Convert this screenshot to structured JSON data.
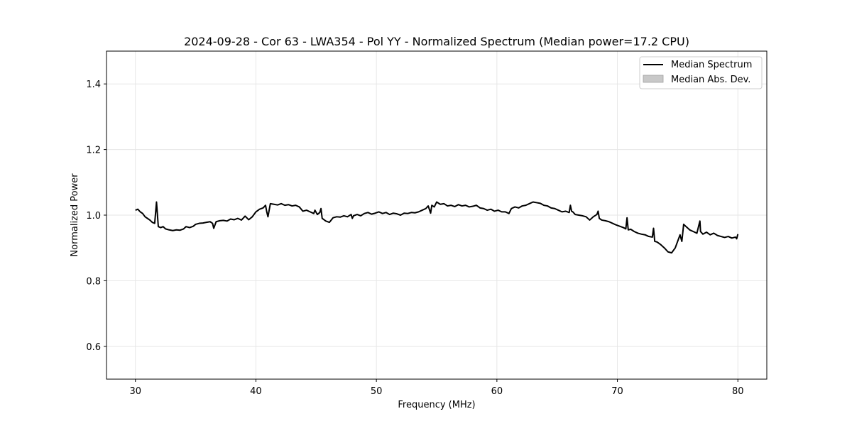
{
  "chart_data": {
    "type": "line",
    "title": "2024-09-28 - Cor 63 - LWA354 - Pol YY - Normalized Spectrum (Median power=17.2 CPU)",
    "xlabel": "Frequency (MHz)",
    "ylabel": "Normalized Power",
    "xlim": [
      27.6,
      82.4
    ],
    "ylim": [
      0.5,
      1.5
    ],
    "xticks": [
      30,
      40,
      50,
      60,
      70,
      80
    ],
    "yticks": [
      0.6,
      0.8,
      1.0,
      1.2,
      1.4
    ],
    "grid": true,
    "legend_position": "top-right",
    "legend": [
      {
        "label": "Median Spectrum",
        "kind": "line",
        "color": "#000000"
      },
      {
        "label": "Median Abs. Dev.",
        "kind": "patch",
        "color": "#c8c8c8"
      }
    ],
    "series": [
      {
        "name": "Median Spectrum",
        "color": "#000000",
        "x": [
          30.0,
          30.2,
          30.4,
          30.6,
          30.8,
          31.0,
          31.2,
          31.4,
          31.6,
          31.75,
          31.9,
          32.1,
          32.3,
          32.5,
          32.8,
          33.1,
          33.4,
          33.7,
          34.0,
          34.2,
          34.5,
          34.8,
          35.0,
          35.3,
          35.6,
          35.9,
          36.2,
          36.4,
          36.5,
          36.7,
          37.0,
          37.3,
          37.6,
          37.9,
          38.2,
          38.5,
          38.8,
          39.1,
          39.4,
          39.7,
          40.0,
          40.3,
          40.6,
          40.8,
          40.9,
          41.0,
          41.2,
          41.5,
          41.8,
          42.1,
          42.4,
          42.7,
          43.0,
          43.3,
          43.6,
          43.9,
          44.2,
          44.5,
          44.8,
          44.9,
          45.1,
          45.3,
          45.4,
          45.5,
          45.8,
          46.1,
          46.4,
          46.7,
          47.0,
          47.3,
          47.6,
          47.9,
          48.0,
          48.1,
          48.4,
          48.7,
          49.0,
          49.3,
          49.6,
          49.9,
          50.2,
          50.5,
          50.8,
          51.1,
          51.4,
          51.7,
          52.0,
          52.3,
          52.6,
          52.9,
          53.2,
          53.5,
          53.8,
          54.1,
          54.3,
          54.5,
          54.6,
          54.8,
          55.0,
          55.3,
          55.6,
          55.9,
          56.2,
          56.5,
          56.8,
          57.1,
          57.4,
          57.7,
          58.0,
          58.3,
          58.6,
          58.9,
          59.2,
          59.5,
          59.8,
          60.1,
          60.4,
          60.7,
          61.0,
          61.2,
          61.5,
          61.8,
          62.1,
          62.4,
          62.7,
          63.0,
          63.3,
          63.6,
          63.9,
          64.2,
          64.5,
          64.8,
          65.1,
          65.4,
          65.7,
          66.0,
          66.1,
          66.2,
          66.3,
          66.5,
          66.8,
          67.1,
          67.4,
          67.7,
          68.0,
          68.3,
          68.4,
          68.5,
          68.7,
          69.0,
          69.3,
          69.6,
          69.9,
          70.2,
          70.5,
          70.7,
          70.8,
          70.9,
          71.1,
          71.4,
          71.7,
          72.0,
          72.3,
          72.6,
          72.9,
          73.0,
          73.1,
          73.3,
          73.6,
          73.9,
          74.2,
          74.5,
          74.8,
          75.0,
          75.2,
          75.35,
          75.5,
          75.7,
          76.0,
          76.3,
          76.6,
          76.8,
          76.85,
          76.9,
          77.1,
          77.4,
          77.7,
          78.0,
          78.3,
          78.6,
          78.9,
          79.2,
          79.5,
          79.8,
          79.9,
          80.0
        ],
        "values": [
          1.015,
          1.018,
          1.01,
          1.005,
          0.995,
          0.99,
          0.985,
          0.978,
          0.975,
          1.04,
          0.965,
          0.962,
          0.965,
          0.958,
          0.955,
          0.953,
          0.955,
          0.954,
          0.958,
          0.965,
          0.962,
          0.966,
          0.972,
          0.975,
          0.976,
          0.978,
          0.98,
          0.975,
          0.96,
          0.98,
          0.983,
          0.984,
          0.982,
          0.988,
          0.986,
          0.99,
          0.985,
          0.997,
          0.986,
          0.995,
          1.01,
          1.018,
          1.022,
          1.03,
          1.01,
          0.995,
          1.035,
          1.033,
          1.031,
          1.035,
          1.03,
          1.032,
          1.028,
          1.03,
          1.025,
          1.012,
          1.015,
          1.01,
          1.005,
          1.015,
          1.002,
          1.008,
          1.02,
          0.99,
          0.982,
          0.978,
          0.992,
          0.995,
          0.994,
          0.998,
          0.995,
          1.002,
          0.99,
          0.998,
          1.002,
          0.998,
          1.005,
          1.008,
          1.003,
          1.006,
          1.01,
          1.005,
          1.008,
          1.002,
          1.006,
          1.004,
          1.0,
          1.006,
          1.005,
          1.008,
          1.007,
          1.01,
          1.015,
          1.02,
          1.028,
          1.006,
          1.03,
          1.025,
          1.04,
          1.033,
          1.035,
          1.028,
          1.03,
          1.026,
          1.032,
          1.028,
          1.03,
          1.025,
          1.027,
          1.03,
          1.022,
          1.02,
          1.015,
          1.018,
          1.012,
          1.015,
          1.01,
          1.01,
          1.005,
          1.02,
          1.025,
          1.022,
          1.028,
          1.03,
          1.035,
          1.04,
          1.038,
          1.036,
          1.03,
          1.028,
          1.022,
          1.02,
          1.015,
          1.01,
          1.012,
          1.008,
          1.03,
          1.012,
          1.01,
          1.002,
          1.0,
          0.998,
          0.995,
          0.985,
          0.995,
          1.002,
          1.012,
          0.99,
          0.985,
          0.983,
          0.98,
          0.975,
          0.97,
          0.966,
          0.962,
          0.958,
          0.992,
          0.955,
          0.957,
          0.95,
          0.945,
          0.942,
          0.94,
          0.935,
          0.933,
          0.96,
          0.92,
          0.918,
          0.91,
          0.9,
          0.888,
          0.885,
          0.9,
          0.92,
          0.94,
          0.92,
          0.972,
          0.965,
          0.955,
          0.95,
          0.945,
          0.975,
          0.982,
          0.95,
          0.942,
          0.948,
          0.94,
          0.945,
          0.938,
          0.935,
          0.932,
          0.935,
          0.93,
          0.933,
          0.928,
          0.942
        ]
      }
    ]
  }
}
